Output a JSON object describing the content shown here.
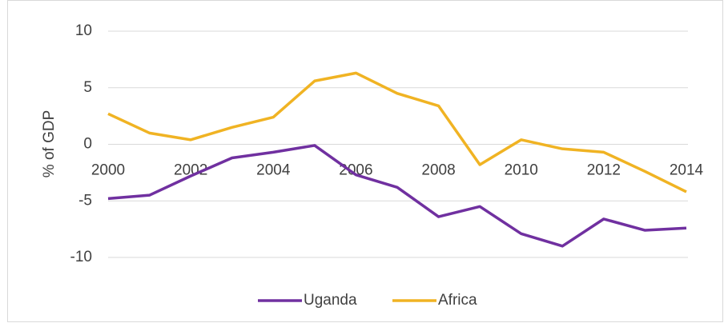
{
  "chart_data": {
    "type": "line",
    "y_label": "% of GDP",
    "x": [
      2000,
      2001,
      2002,
      2003,
      2004,
      2005,
      2006,
      2007,
      2008,
      2009,
      2010,
      2011,
      2012,
      2013,
      2014
    ],
    "series": [
      {
        "name": "Uganda",
        "color": "#7030a0",
        "values": [
          -4.8,
          -4.5,
          -2.8,
          -1.2,
          -0.7,
          -0.1,
          -2.7,
          -3.8,
          -6.4,
          -5.5,
          -7.9,
          -9.0,
          -6.6,
          -7.6,
          -7.4
        ]
      },
      {
        "name": "Africa",
        "color": "#f0b323",
        "values": [
          2.7,
          1.0,
          0.4,
          1.5,
          2.4,
          5.6,
          6.3,
          4.5,
          3.4,
          -1.8,
          0.4,
          -0.4,
          -0.7,
          -2.4,
          -4.2
        ]
      }
    ],
    "xlim": [
      2000,
      2014
    ],
    "xticks": [
      2000,
      2002,
      2004,
      2006,
      2008,
      2010,
      2012,
      2014
    ],
    "ylim": [
      -10,
      10
    ],
    "yticks": [
      -10,
      -5,
      0,
      5,
      10
    ],
    "grid": true,
    "legend": "bottom"
  }
}
